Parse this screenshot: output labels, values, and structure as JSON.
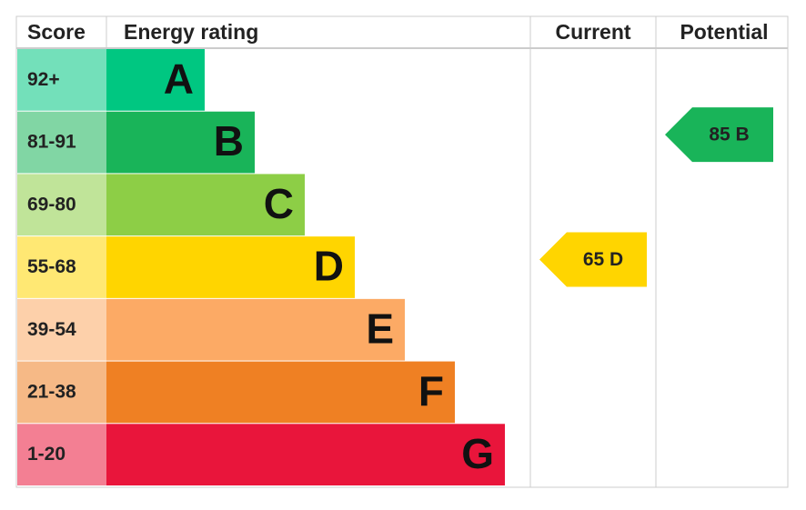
{
  "header": {
    "score": "Score",
    "rating": "Energy rating",
    "current": "Current",
    "potential": "Potential"
  },
  "bands": [
    {
      "score": "92+",
      "letter": "A",
      "color": "#00c781"
    },
    {
      "score": "81-91",
      "letter": "B",
      "color": "#19b459"
    },
    {
      "score": "69-80",
      "letter": "C",
      "color": "#8dce46"
    },
    {
      "score": "55-68",
      "letter": "D",
      "color": "#ffd500"
    },
    {
      "score": "39-54",
      "letter": "E",
      "color": "#fcaa65"
    },
    {
      "score": "21-38",
      "letter": "F",
      "color": "#ef8023"
    },
    {
      "score": "1-20",
      "letter": "G",
      "color": "#e9153b"
    }
  ],
  "current": {
    "label": "65 D",
    "color": "#ffd500"
  },
  "potential": {
    "label": "85 B",
    "color": "#19b459"
  }
}
